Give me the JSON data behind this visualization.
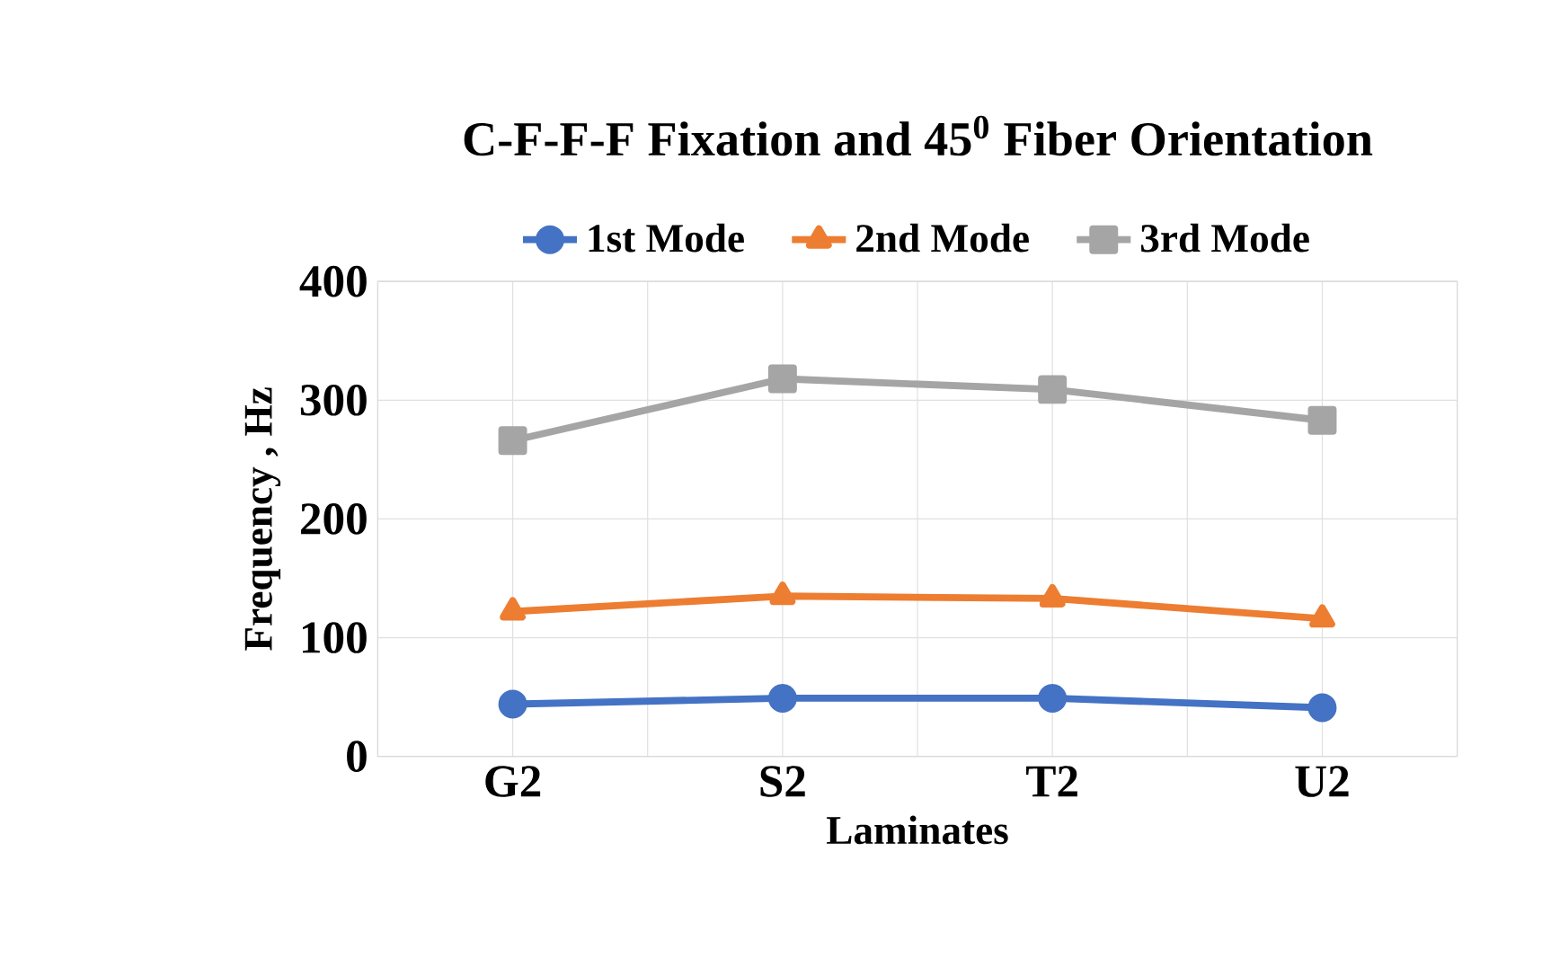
{
  "chart_data": {
    "type": "line",
    "title": "C-F-F-F  Fixation and 45$^{0}$ Fiber Orientation",
    "xlabel": "Laminates",
    "ylabel": "Frequency , Hz",
    "categories": [
      "G2",
      "S2",
      "T2",
      "U2"
    ],
    "series": [
      {
        "name": "1st Mode",
        "color": "#4472c4",
        "marker": "circle",
        "values": [
          44,
          49,
          49,
          41
        ]
      },
      {
        "name": "2nd Mode",
        "color": "#ed7d31",
        "marker": "triangle",
        "values": [
          122,
          135,
          133,
          116
        ]
      },
      {
        "name": "3rd Mode",
        "color": "#a5a5a5",
        "marker": "square",
        "values": [
          266,
          318,
          309,
          283
        ]
      }
    ],
    "ylim": [
      0,
      400
    ],
    "yticks": [
      0,
      100,
      200,
      300,
      400
    ],
    "grid": true,
    "legend": "top",
    "line_style": "solid"
  }
}
